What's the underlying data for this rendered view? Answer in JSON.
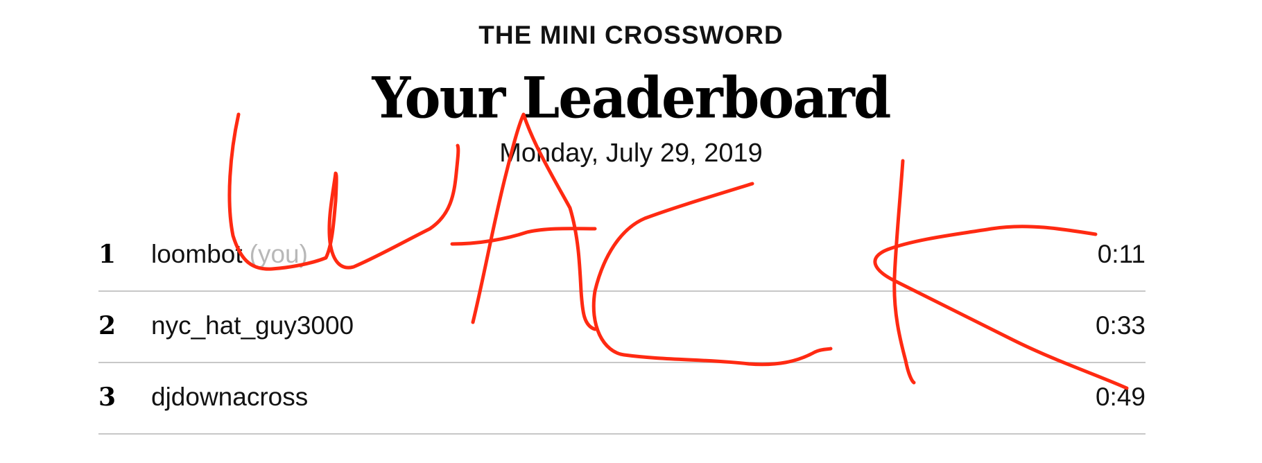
{
  "header": {
    "kicker": "THE MINI CROSSWORD",
    "title": "Your Leaderboard",
    "date": "Monday, July 29, 2019"
  },
  "leaderboard": {
    "rows": [
      {
        "rank": "1",
        "name": "loombot",
        "tag": "(you)",
        "time": "0:11"
      },
      {
        "rank": "2",
        "name": "nyc_hat_guy3000",
        "tag": "",
        "time": "0:33"
      },
      {
        "rank": "3",
        "name": "djdownacross",
        "tag": "",
        "time": "0:49"
      }
    ]
  },
  "annotation": {
    "stroke_color": "#ff2a12"
  }
}
